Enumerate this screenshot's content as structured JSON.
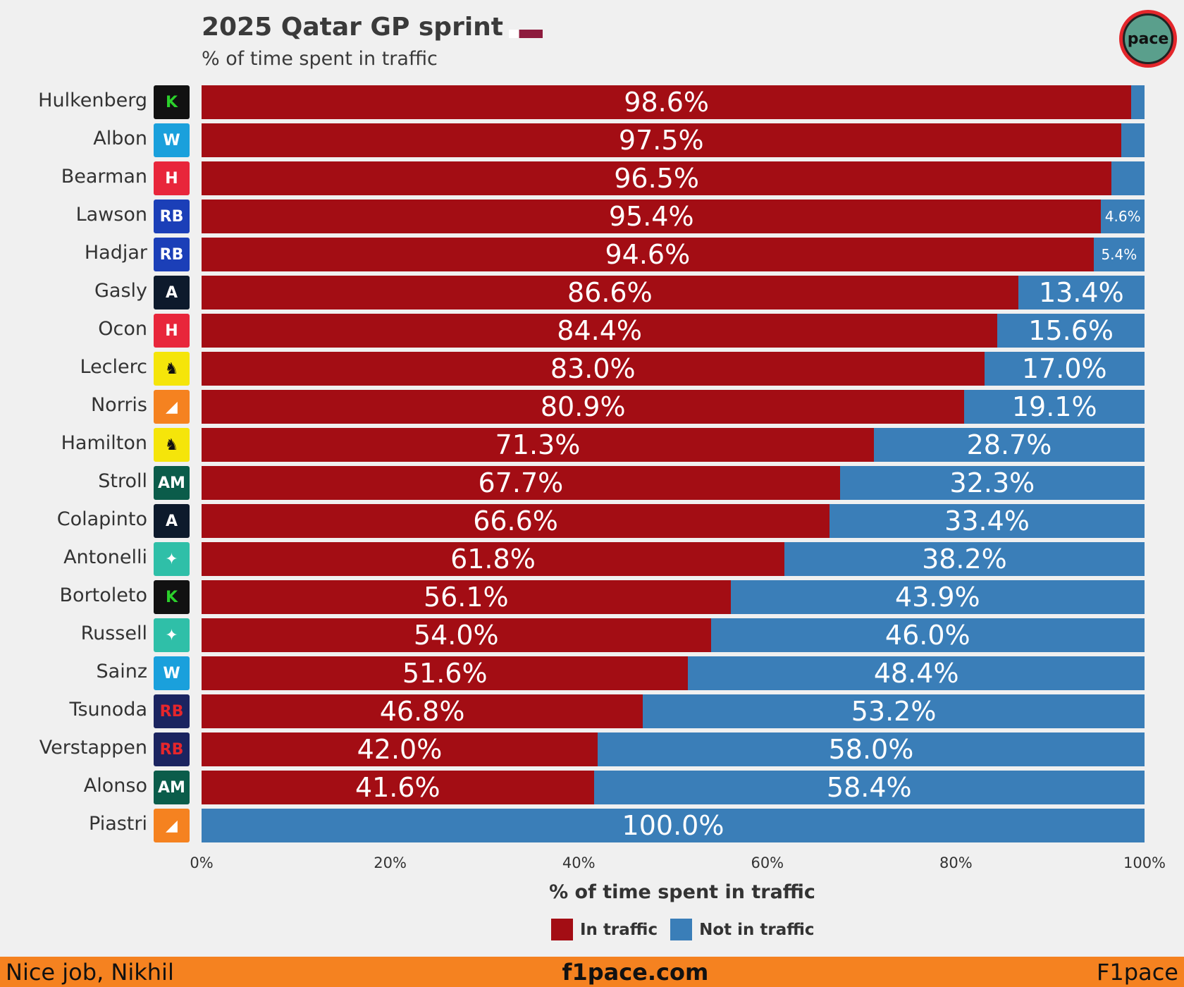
{
  "header": {
    "title": "2025 Qatar GP sprint",
    "subtitle": "% of time spent in traffic",
    "logo_text": "pace"
  },
  "colors": {
    "in_traffic": "#a30d14",
    "not_in_traffic": "#3a7eb8",
    "footer": "#f58220"
  },
  "chart_data": {
    "type": "bar",
    "orientation": "horizontal",
    "stacked": true,
    "xlabel": "% of time spent in traffic",
    "xlim": [
      0,
      100
    ],
    "xticks": [
      "0%",
      "20%",
      "40%",
      "60%",
      "80%",
      "100%"
    ],
    "legend_position": "bottom",
    "categories": [
      "Hulkenberg",
      "Albon",
      "Bearman",
      "Lawson",
      "Hadjar",
      "Gasly",
      "Ocon",
      "Leclerc",
      "Norris",
      "Hamilton",
      "Stroll",
      "Colapinto",
      "Antonelli",
      "Bortoleto",
      "Russell",
      "Sainz",
      "Tsunoda",
      "Verstappen",
      "Alonso",
      "Piastri"
    ],
    "teams": [
      "Sauber",
      "Williams",
      "Haas",
      "Racing Bulls",
      "Racing Bulls",
      "Alpine",
      "Haas",
      "Ferrari",
      "McLaren",
      "Ferrari",
      "Aston Martin",
      "Alpine",
      "Mercedes",
      "Sauber",
      "Mercedes",
      "Williams",
      "Red Bull",
      "Red Bull",
      "Aston Martin",
      "McLaren"
    ],
    "series": [
      {
        "name": "In traffic",
        "values": [
          98.6,
          97.5,
          96.5,
          95.4,
          94.6,
          86.6,
          84.4,
          83.0,
          80.9,
          71.3,
          67.7,
          66.6,
          61.8,
          56.1,
          54.0,
          51.6,
          46.8,
          42.0,
          41.6,
          0.0
        ],
        "labels": [
          "98.6%",
          "97.5%",
          "96.5%",
          "95.4%",
          "94.6%",
          "86.6%",
          "84.4%",
          "83.0%",
          "80.9%",
          "71.3%",
          "67.7%",
          "66.6%",
          "61.8%",
          "56.1%",
          "54.0%",
          "51.6%",
          "46.8%",
          "42.0%",
          "41.6%",
          ""
        ]
      },
      {
        "name": "Not in traffic",
        "values": [
          1.4,
          2.5,
          3.5,
          4.6,
          5.4,
          13.4,
          15.6,
          17.0,
          19.1,
          28.7,
          32.3,
          33.4,
          38.2,
          43.9,
          46.0,
          48.4,
          53.2,
          58.0,
          58.4,
          100.0
        ],
        "labels": [
          "",
          "",
          "",
          "4.6%",
          "5.4%",
          "13.4%",
          "15.6%",
          "17.0%",
          "19.1%",
          "28.7%",
          "32.3%",
          "33.4%",
          "38.2%",
          "43.9%",
          "46.0%",
          "48.4%",
          "53.2%",
          "58.0%",
          "58.4%",
          "100.0%"
        ]
      }
    ]
  },
  "footer": {
    "left": "Nice job, Nikhil",
    "center": "f1pace.com",
    "right": "F1pace"
  }
}
